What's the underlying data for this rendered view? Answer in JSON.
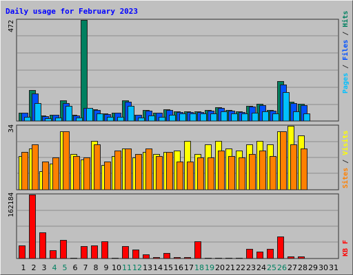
{
  "chart_data": {
    "type": "bar",
    "title": "Daily usage for February 2023",
    "x": [
      "1",
      "2",
      "3",
      "4",
      "5",
      "6",
      "7",
      "8",
      "9",
      "10",
      "11",
      "12",
      "13",
      "14",
      "15",
      "16",
      "17",
      "18",
      "19",
      "20",
      "21",
      "22",
      "23",
      "24",
      "25",
      "26",
      "27",
      "28",
      "29",
      "30",
      "31"
    ],
    "weekend_days": [
      "4",
      "5",
      "11",
      "12",
      "18",
      "19",
      "25",
      "26"
    ],
    "panels": {
      "hits": {
        "scale_label": "472",
        "ylim": [
          0,
          472
        ],
        "axis_label": [
          {
            "text": "Pages",
            "color": "#00c0ff"
          },
          {
            "text": " / ",
            "color": "#333333"
          },
          {
            "text": "Files",
            "color": "#0050ff"
          },
          {
            "text": " / ",
            "color": "#333333"
          },
          {
            "text": "Hits",
            "color": "#008060"
          }
        ],
        "series": [
          {
            "name": "Hits",
            "color": "#008060",
            "values": [
              40,
              145,
              25,
              30,
              95,
              28,
              472,
              55,
              35,
              40,
              95,
              30,
              50,
              40,
              55,
              45,
              45,
              45,
              50,
              65,
              50,
              45,
              70,
              80,
              50,
              185,
              90,
              80,
              0,
              0,
              0
            ]
          },
          {
            "name": "Files",
            "color": "#0050ff",
            "values": [
              38,
              130,
              22,
              28,
              85,
              25,
              60,
              50,
              32,
              38,
              90,
              28,
              48,
              38,
              52,
              43,
              43,
              43,
              47,
              60,
              48,
              43,
              67,
              75,
              47,
              170,
              85,
              75,
              0,
              0,
              0
            ]
          },
          {
            "name": "Pages",
            "color": "#00c0ff",
            "values": [
              20,
              85,
              12,
              15,
              70,
              15,
              60,
              35,
              20,
              20,
              70,
              15,
              25,
              20,
              30,
              35,
              35,
              35,
              35,
              45,
              35,
              35,
              40,
              45,
              35,
              135,
              45,
              35,
              0,
              0,
              0
            ]
          }
        ]
      },
      "visits": {
        "scale_label": "34",
        "ylim": [
          0,
          34
        ],
        "axis_label": [
          {
            "text": "Sites",
            "color": "#ff8000"
          },
          {
            "text": " / ",
            "color": "#333333"
          },
          {
            "text": "Visits",
            "color": "#ffff00"
          }
        ],
        "series": [
          {
            "name": "Visits",
            "color": "#ffff00",
            "values": [
              18,
              22,
              10,
              14,
              31,
              19,
              16,
              26,
              13,
              18,
              22,
              17,
              20,
              19,
              20,
              21,
              26,
              19,
              24,
              26,
              22,
              21,
              24,
              26,
              24,
              31,
              34,
              29,
              0,
              0,
              0
            ]
          },
          {
            "name": "Sites",
            "color": "#ff8000",
            "values": [
              20,
              24,
              15,
              17,
              31,
              18,
              17,
              24,
              15,
              21,
              22,
              19,
              22,
              18,
              20,
              15,
              15,
              17,
              17,
              21,
              18,
              17,
              19,
              21,
              18,
              31,
              24,
              22,
              0,
              0,
              0
            ]
          }
        ]
      },
      "kb": {
        "scale_label": "162184",
        "ylim": [
          0,
          162184
        ],
        "axis_label": [
          {
            "text": "KB F",
            "color": "#ff0000"
          }
        ],
        "series": [
          {
            "name": "KB F",
            "color": "#ff0000",
            "values": [
              34000,
              162184,
              66000,
              21000,
              47000,
              2000,
              31000,
              34000,
              44000,
              2000,
              31000,
              23000,
              11000,
              4000,
              14000,
              4000,
              4000,
              44000,
              2000,
              2000,
              2000,
              2000,
              25000,
              18000,
              25000,
              56000,
              6000,
              5000,
              0,
              0,
              0
            ]
          }
        ]
      }
    }
  }
}
